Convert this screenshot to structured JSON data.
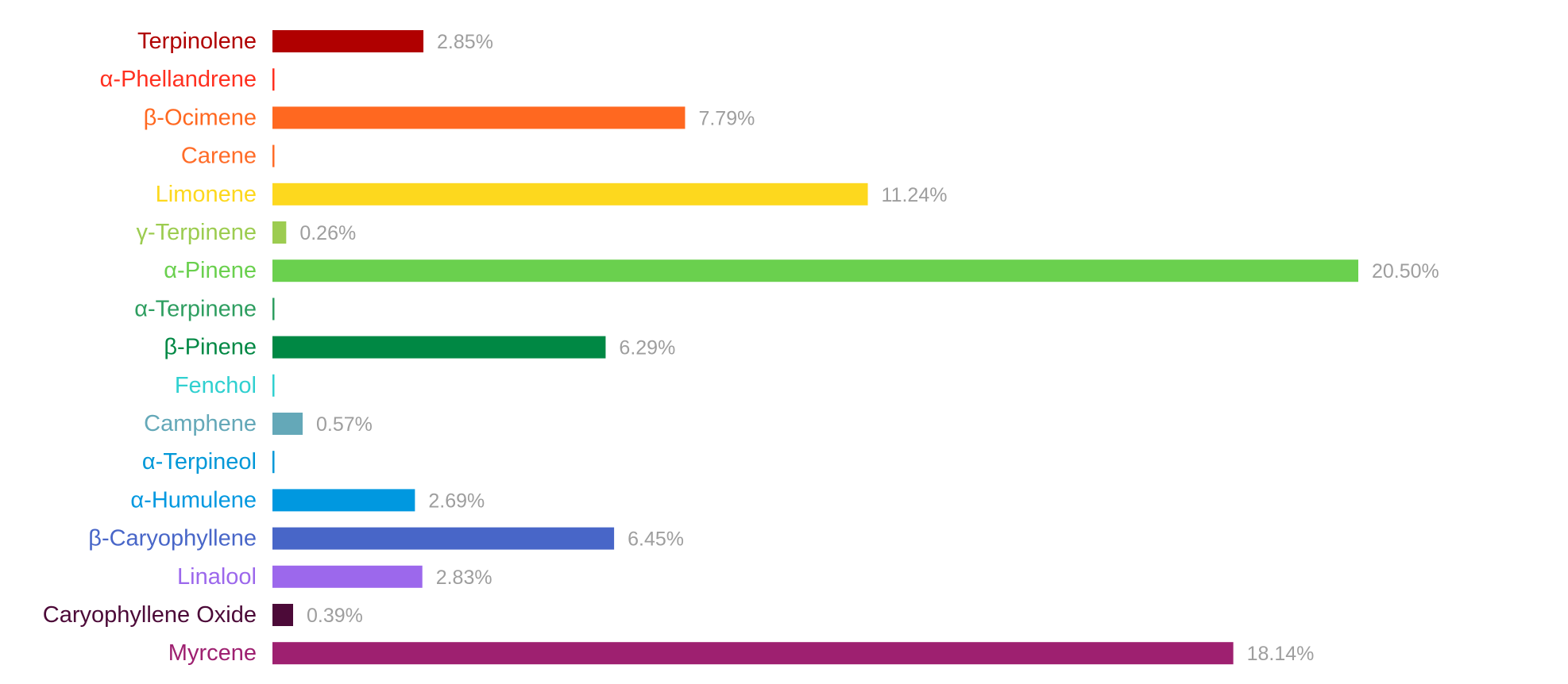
{
  "chart_data": {
    "type": "bar",
    "orientation": "horizontal",
    "title": "",
    "xlabel": "",
    "ylabel": "",
    "xlim": [
      0,
      20.5
    ],
    "grid": false,
    "legend": "none",
    "categories": [
      "Terpinolene",
      "α-Phellandrene",
      "β-Ocimene",
      "Carene",
      "Limonene",
      "γ-Terpinene",
      "α-Pinene",
      "α-Terpinene",
      "β-Pinene",
      "Fenchol",
      "Camphene",
      "α-Terpineol",
      "α-Humulene",
      "β-Caryophyllene",
      "Linalool",
      "Caryophyllene Oxide",
      "Myrcene"
    ],
    "values": [
      2.85,
      0,
      7.79,
      0,
      11.24,
      0.26,
      20.5,
      0,
      6.29,
      0,
      0.57,
      0,
      2.69,
      6.45,
      2.83,
      0.39,
      18.14
    ],
    "value_labels": [
      "2.85%",
      "",
      "7.79%",
      "",
      "11.24%",
      "0.26%",
      "20.50%",
      "",
      "6.29%",
      "",
      "0.57%",
      "",
      "2.69%",
      "6.45%",
      "2.83%",
      "0.39%",
      "18.14%"
    ],
    "colors": [
      "#b00000",
      "#ff3020",
      "#ff6820",
      "#ff6c28",
      "#fdd81e",
      "#9ccc50",
      "#6ad04e",
      "#2e9e60",
      "#008844",
      "#30d0d0",
      "#64a8b8",
      "#0098d8",
      "#0098e0",
      "#4866c8",
      "#9c68ec",
      "#4c0a38",
      "#9e2070"
    ]
  }
}
